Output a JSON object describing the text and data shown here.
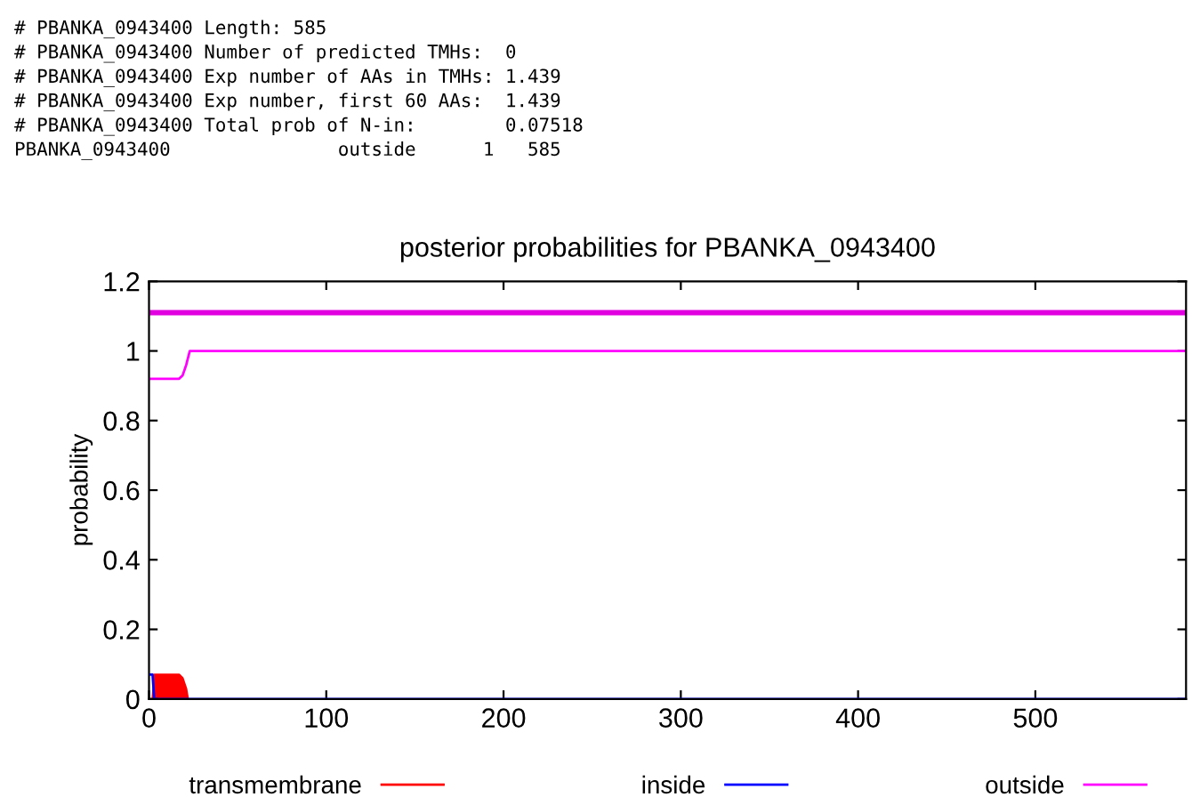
{
  "chart_data": {
    "type": "line",
    "title": "posterior probabilities for PBANKA_0943400",
    "ylabel": "probability",
    "annotations": [
      "# PBANKA_0943400 Length: 585",
      "# PBANKA_0943400 Number of predicted TMHs:  0",
      "# PBANKA_0943400 Exp number of AAs in TMHs: 1.439",
      "# PBANKA_0943400 Exp number, first 60 AAs:  1.439",
      "# PBANKA_0943400 Total prob of N-in:        0.07518",
      "PBANKA_0943400               outside      1   585"
    ],
    "series": [
      {
        "name": "transmembrane",
        "type": "area",
        "color": "#ff0000",
        "x": [
          2,
          3,
          17,
          19,
          21,
          22
        ],
        "values": [
          0,
          0.07,
          0.07,
          0.06,
          0.03,
          0
        ]
      },
      {
        "name": "inside",
        "color": "#0000ff",
        "x": [
          1,
          2,
          3,
          585
        ],
        "values": [
          0.07,
          0.07,
          0,
          0
        ]
      },
      {
        "name": "outside",
        "color": "#ff00ff",
        "x": [
          1,
          17,
          19,
          21,
          23,
          585
        ],
        "values": [
          0.92,
          0.92,
          0.93,
          0.96,
          1,
          1
        ]
      },
      {
        "type": "line",
        "color": "#e000e0",
        "x": [
          1,
          585
        ],
        "values": [
          1.11,
          1.11
        ]
      }
    ],
    "xlim": [
      0,
      585
    ],
    "xticks": [
      0,
      100,
      200,
      300,
      400,
      500
    ],
    "ylim": [
      0,
      1.2
    ],
    "yticks": [
      0,
      0.2,
      0.4,
      0.6,
      0.8,
      1,
      1.2
    ],
    "grid": false,
    "legend": "bottom"
  }
}
